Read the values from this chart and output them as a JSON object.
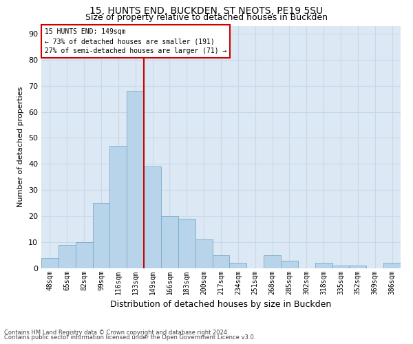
{
  "title1": "15, HUNTS END, BUCKDEN, ST NEOTS, PE19 5SU",
  "title2": "Size of property relative to detached houses in Buckden",
  "xlabel": "Distribution of detached houses by size in Buckden",
  "ylabel": "Number of detached properties",
  "footnote1": "Contains HM Land Registry data © Crown copyright and database right 2024.",
  "footnote2": "Contains public sector information licensed under the Open Government Licence v3.0.",
  "bar_labels": [
    "48sqm",
    "65sqm",
    "82sqm",
    "99sqm",
    "116sqm",
    "133sqm",
    "149sqm",
    "166sqm",
    "183sqm",
    "200sqm",
    "217sqm",
    "234sqm",
    "251sqm",
    "268sqm",
    "285sqm",
    "302sqm",
    "318sqm",
    "335sqm",
    "352sqm",
    "369sqm",
    "386sqm"
  ],
  "bar_values": [
    4,
    9,
    10,
    25,
    47,
    68,
    39,
    20,
    19,
    11,
    5,
    2,
    0,
    5,
    3,
    0,
    2,
    1,
    1,
    0,
    2
  ],
  "bar_color": "#b8d4ea",
  "bar_edge_color": "#7aaac8",
  "property_line_index": 6,
  "property_line_color": "#cc0000",
  "annotation_line1": "15 HUNTS END: 149sqm",
  "annotation_line2": "← 73% of detached houses are smaller (191)",
  "annotation_line3": "27% of semi-detached houses are larger (71) →",
  "annotation_box_color": "#cc0000",
  "ylim": [
    0,
    93
  ],
  "yticks": [
    0,
    10,
    20,
    30,
    40,
    50,
    60,
    70,
    80,
    90
  ],
  "grid_color": "#c8d8ec",
  "bg_color": "#dce8f4",
  "title_fontsize": 10,
  "subtitle_fontsize": 9,
  "ylabel_fontsize": 8,
  "xlabel_fontsize": 9,
  "tick_fontsize": 7,
  "footnote_fontsize": 6
}
